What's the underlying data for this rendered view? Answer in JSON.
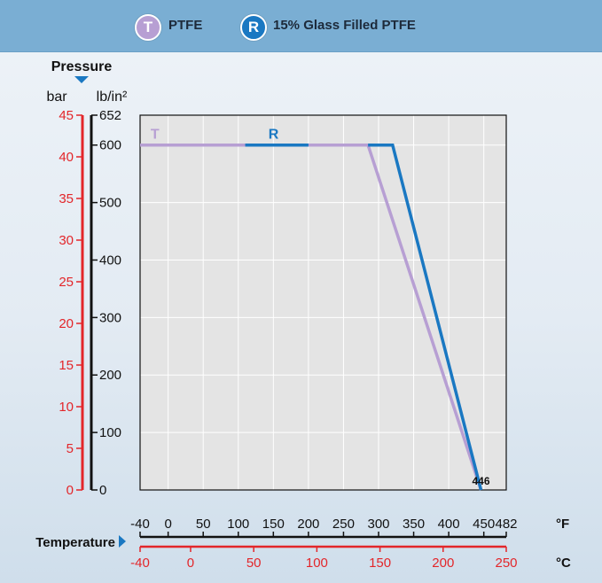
{
  "legend": [
    {
      "letter": "T",
      "label": "PTFE",
      "color": "#b79fd3"
    },
    {
      "letter": "R",
      "label": "15% Glass Filled PTFE",
      "color": "#1a78c2"
    }
  ],
  "chart_data": {
    "type": "line",
    "y_title": "Pressure",
    "y_units": [
      "bar",
      "lb/in²"
    ],
    "x_title": "Temperature",
    "bar_axis": {
      "ticks": [
        0,
        5,
        10,
        15,
        20,
        25,
        30,
        35,
        40,
        45
      ],
      "color": "#e3262a"
    },
    "psi_axis": {
      "ticks": [
        "0",
        "100",
        "200",
        "300",
        "400",
        "500",
        "600",
        "652"
      ],
      "color": "#111111"
    },
    "fahrenheit_axis": {
      "ticks": [
        "-40",
        "0",
        "50",
        "100",
        "150",
        "200",
        "250",
        "300",
        "350",
        "400",
        "450",
        "482"
      ],
      "unit": "°F",
      "color": "#111111"
    },
    "celsius_axis": {
      "ticks": [
        "-40",
        "0",
        "50",
        "100",
        "150",
        "200",
        "250"
      ],
      "unit": "°C",
      "color": "#e3262a"
    },
    "xlim_f": [
      -40,
      482
    ],
    "ylim_psi": [
      0,
      652
    ],
    "annotation": {
      "label": "446",
      "x_f": 446,
      "y_psi": 0
    },
    "series": [
      {
        "name": "T",
        "color": "#b79fd3",
        "x_f": [
          -40,
          285,
          446
        ],
        "y_psi": [
          600,
          600,
          0
        ]
      },
      {
        "name": "R",
        "color": "#1a78c2",
        "x_f": [
          -40,
          320,
          446
        ],
        "y_psi": [
          600,
          600,
          0
        ]
      }
    ],
    "grid": true
  }
}
